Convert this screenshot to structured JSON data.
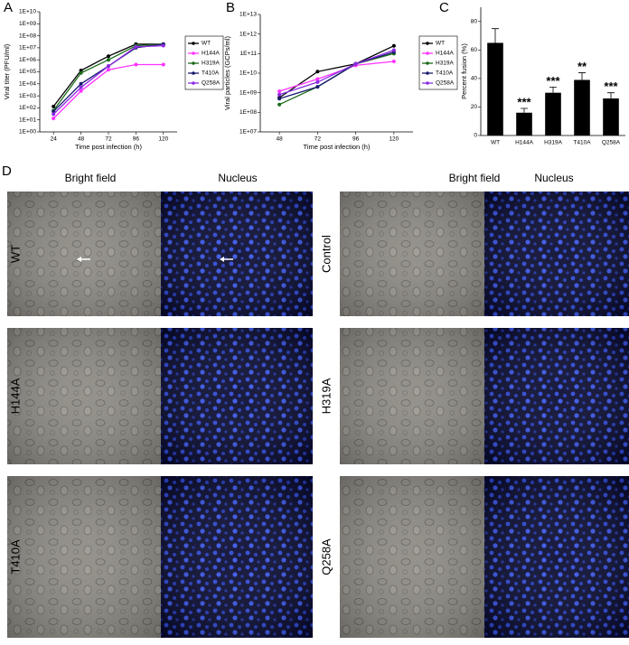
{
  "chart_data": [
    {
      "type": "line",
      "panel": "A",
      "log_y": true,
      "xlabel": "Time post infection (h)",
      "ylabel": "Viral titer (PFU/ml)",
      "x": [
        24,
        48,
        72,
        96,
        120
      ],
      "xlim": [
        12,
        132
      ],
      "xticks": [
        24,
        48,
        72,
        96,
        120
      ],
      "ylim": [
        1,
        10000000000
      ],
      "yticks": [
        {
          "value": 1,
          "label": "1E+00"
        },
        {
          "value": 10,
          "label": "1E+01"
        },
        {
          "value": 100,
          "label": "1E+02"
        },
        {
          "value": 1000,
          "label": "1E+03"
        },
        {
          "value": 10000,
          "label": "1E+04"
        },
        {
          "value": 100000,
          "label": "1E+05"
        },
        {
          "value": 1000000,
          "label": "1E+06"
        },
        {
          "value": 10000000,
          "label": "1E+07"
        },
        {
          "value": 100000000,
          "label": "1E+08"
        },
        {
          "value": 1000000000,
          "label": "1E+09"
        },
        {
          "value": 10000000000,
          "label": "1E+10"
        }
      ],
      "series": [
        {
          "name": "WT",
          "color": "#000000",
          "values": [
            130,
            130000,
            2000000,
            20000000,
            20000000
          ]
        },
        {
          "name": "H144A",
          "color": "#ff33ff",
          "values": [
            13,
            2500,
            150000,
            400000,
            400000
          ]
        },
        {
          "name": "H319A",
          "color": "#1a6b1a",
          "values": [
            60,
            80000,
            1000000,
            15000000,
            20000000
          ]
        },
        {
          "name": "T410A",
          "color": "#1a1a6e",
          "values": [
            50,
            10000,
            300000,
            10000000,
            20000000
          ]
        },
        {
          "name": "Q258A",
          "color": "#8a2be2",
          "values": [
            30,
            5000,
            300000,
            12000000,
            15000000
          ]
        }
      ]
    },
    {
      "type": "line",
      "panel": "B",
      "log_y": true,
      "xlabel": "Time post infection (h)",
      "ylabel": "Viral particles (GCPs/ml)",
      "x": [
        48,
        72,
        96,
        120
      ],
      "xlim": [
        36,
        132
      ],
      "xticks": [
        48,
        72,
        96,
        120
      ],
      "ylim": [
        10000000,
        10000000000000
      ],
      "yticks": [
        {
          "value": 10000000,
          "label": "1E+07"
        },
        {
          "value": 100000000,
          "label": "1E+08"
        },
        {
          "value": 1000000000,
          "label": "1E+09"
        },
        {
          "value": 10000000000,
          "label": "1E+10"
        },
        {
          "value": 100000000000,
          "label": "1E+11"
        },
        {
          "value": 1000000000000,
          "label": "1E+12"
        },
        {
          "value": 10000000000000,
          "label": "1E+13"
        }
      ],
      "series": [
        {
          "name": "WT",
          "color": "#000000",
          "values": [
            560000000,
            12000000000,
            30000000000,
            250000000000
          ]
        },
        {
          "name": "H144A",
          "color": "#ff33ff",
          "values": [
            1200000000,
            5000000000,
            25000000000,
            40000000000
          ]
        },
        {
          "name": "H319A",
          "color": "#1a6b1a",
          "values": [
            250000000,
            2000000000,
            30000000000,
            100000000000
          ]
        },
        {
          "name": "T410A",
          "color": "#1a1a6e",
          "values": [
            500000000,
            2000000000,
            30000000000,
            120000000000
          ]
        },
        {
          "name": "Q258A",
          "color": "#8a2be2",
          "values": [
            800000000,
            3500000000,
            30000000000,
            150000000000
          ]
        }
      ]
    },
    {
      "type": "bar",
      "panel": "C",
      "ylabel": "Percent fusion (%)",
      "color": "#000000",
      "categories": [
        "WT",
        "H144A",
        "H319A",
        "T410A",
        "Q258A"
      ],
      "values": [
        65,
        16,
        30,
        39,
        26
      ],
      "errors": [
        10,
        3,
        4,
        5,
        4
      ],
      "annotations": [
        null,
        "***",
        "***",
        "**",
        "***"
      ],
      "ylim": [
        0,
        90
      ],
      "yticks": [
        0,
        20,
        40,
        60,
        80
      ]
    }
  ],
  "panel_d": {
    "label": "D",
    "columns": [
      "Bright field",
      "Nucleus",
      "Bright field",
      "Nucleus"
    ],
    "rows": [
      [
        "WT",
        "Control"
      ],
      [
        "H144A",
        "H319A"
      ],
      [
        "T410A",
        "Q258A"
      ]
    ]
  }
}
